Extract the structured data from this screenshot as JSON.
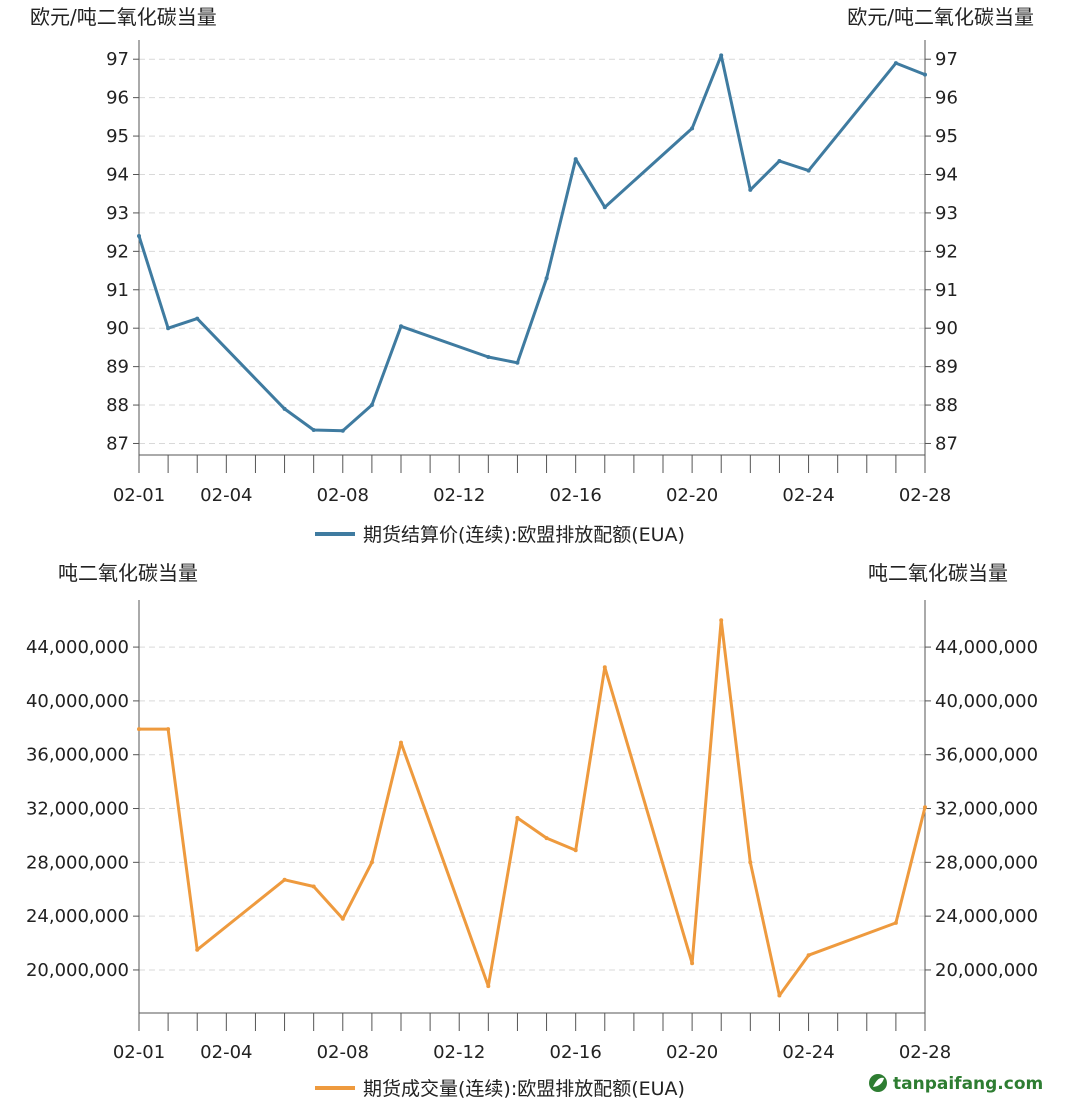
{
  "charts": [
    {
      "type": "line",
      "left_unit": "欧元/吨二氧化碳当量",
      "right_unit": "欧元/吨二氧化碳当量",
      "series_name": "期货结算价(连续):欧盟排放配额(EUA)",
      "color": "#3f7ba0",
      "x_ticks": [
        "02-01",
        "02-04",
        "02-08",
        "02-12",
        "02-16",
        "02-20",
        "02-24",
        "02-28"
      ],
      "y_ticks": [
        "87",
        "88",
        "89",
        "90",
        "91",
        "92",
        "93",
        "94",
        "95",
        "96",
        "97"
      ],
      "ylim": [
        86.7,
        97.5
      ],
      "grid": true,
      "legend": "bottom-center",
      "days": [
        1,
        2,
        3,
        6,
        7,
        8,
        9,
        10,
        13,
        14,
        15,
        16,
        17,
        20,
        21,
        22,
        23,
        24,
        27,
        28
      ],
      "values": [
        92.4,
        90.0,
        90.25,
        87.9,
        87.35,
        87.33,
        88.0,
        90.05,
        89.25,
        89.1,
        91.3,
        94.4,
        93.15,
        95.2,
        97.1,
        93.6,
        94.35,
        94.1,
        96.9,
        96.6
      ]
    },
    {
      "type": "line",
      "left_unit": "吨二氧化碳当量",
      "right_unit": "吨二氧化碳当量",
      "series_name": "期货成交量(连续):欧盟排放配额(EUA)",
      "color": "#ee9a3e",
      "x_ticks": [
        "02-01",
        "02-04",
        "02-08",
        "02-12",
        "02-16",
        "02-20",
        "02-24",
        "02-28"
      ],
      "y_ticks": [
        "20,000,000",
        "24,000,000",
        "28,000,000",
        "32,000,000",
        "36,000,000",
        "40,000,000",
        "44,000,000"
      ],
      "ylim": [
        16800000,
        47500000
      ],
      "grid": true,
      "legend": "bottom-center",
      "days": [
        1,
        2,
        3,
        6,
        7,
        8,
        9,
        10,
        13,
        14,
        15,
        16,
        17,
        20,
        21,
        22,
        23,
        24,
        27,
        28
      ],
      "values": [
        37900000,
        37900000,
        21500000,
        26700000,
        26200000,
        23800000,
        28000000,
        36900000,
        18800000,
        31300000,
        29800000,
        28900000,
        42500000,
        20500000,
        46000000,
        28000000,
        18100000,
        21100000,
        23500000,
        32100000
      ]
    }
  ],
  "watermark": {
    "text": "tanpaifang.com",
    "icon": "leaf-logo-icon"
  }
}
